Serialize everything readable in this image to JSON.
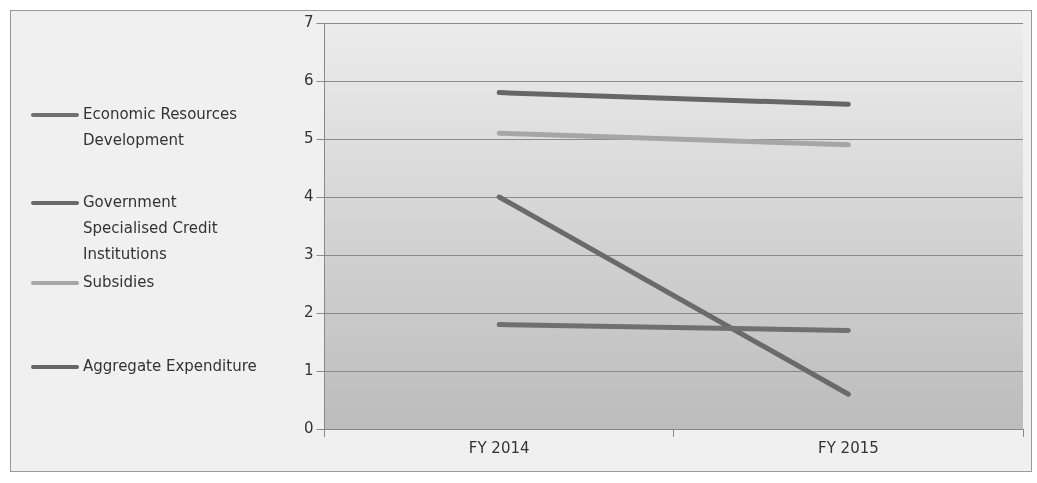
{
  "chart_data": {
    "type": "line",
    "categories": [
      "FY 2014",
      "FY 2015"
    ],
    "series": [
      {
        "name": "Economic Resources Development",
        "color": "#707070",
        "values": [
          1.8,
          1.7
        ]
      },
      {
        "name": "Government Specialised Credit Institutions",
        "color": "#6a6a6a",
        "values": [
          4.0,
          0.6
        ]
      },
      {
        "name": "Subsidies",
        "color": "#a6a6a6",
        "values": [
          5.1,
          4.9
        ]
      },
      {
        "name": "Aggregate Expenditure",
        "color": "#666666",
        "values": [
          5.8,
          5.6
        ]
      }
    ],
    "ylim": [
      0,
      7
    ],
    "yticks": [
      0,
      1,
      2,
      3,
      4,
      5,
      6,
      7
    ],
    "grid": "y",
    "legend": "left",
    "marker": "none",
    "line_style": "solid"
  }
}
